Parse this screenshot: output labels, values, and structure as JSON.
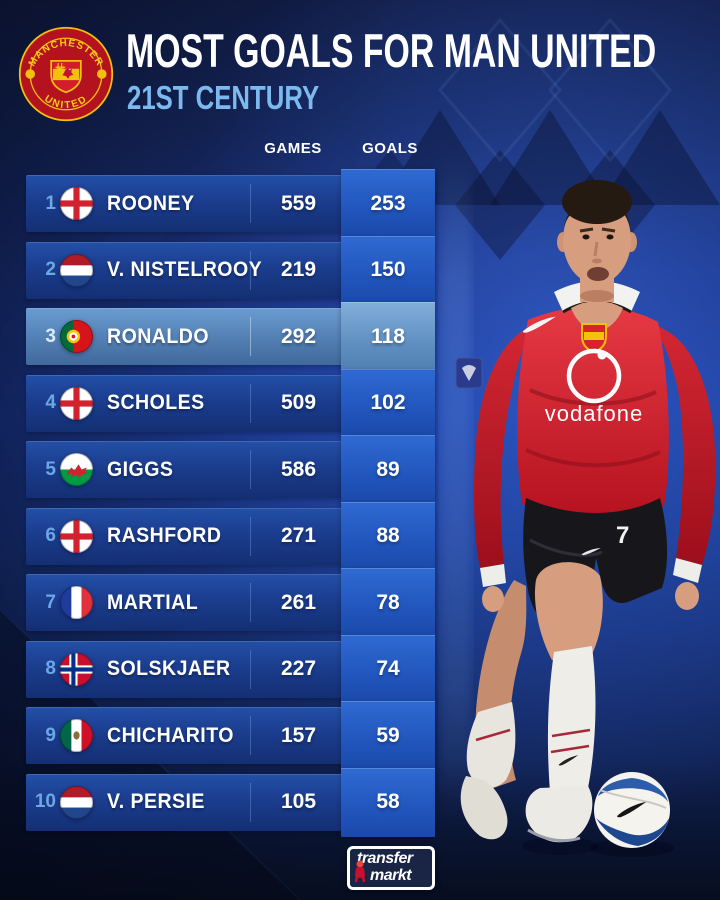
{
  "header": {
    "title": "MOST GOALS FOR MAN UNITED",
    "subtitle": "21ST CENTURY",
    "crest_top": "MANCHESTER",
    "crest_bottom": "UNITED"
  },
  "table": {
    "columns": [
      "GAMES",
      "GOALS"
    ],
    "rows": [
      {
        "rank": "1",
        "country": "england",
        "player": "ROONEY",
        "games": "559",
        "goals": "253",
        "highlight": false
      },
      {
        "rank": "2",
        "country": "netherlands",
        "player": "V. NISTELROOY",
        "games": "219",
        "goals": "150",
        "highlight": false
      },
      {
        "rank": "3",
        "country": "portugal",
        "player": "RONALDO",
        "games": "292",
        "goals": "118",
        "highlight": true
      },
      {
        "rank": "4",
        "country": "england",
        "player": "SCHOLES",
        "games": "509",
        "goals": "102",
        "highlight": false
      },
      {
        "rank": "5",
        "country": "wales",
        "player": "GIGGS",
        "games": "586",
        "goals": "89",
        "highlight": false
      },
      {
        "rank": "6",
        "country": "england",
        "player": "RASHFORD",
        "games": "271",
        "goals": "88",
        "highlight": false
      },
      {
        "rank": "7",
        "country": "france",
        "player": "MARTIAL",
        "games": "261",
        "goals": "78",
        "highlight": false
      },
      {
        "rank": "8",
        "country": "norway",
        "player": "SOLSKJAER",
        "games": "227",
        "goals": "74",
        "highlight": false
      },
      {
        "rank": "9",
        "country": "mexico",
        "player": "CHICHARITO",
        "games": "157",
        "goals": "59",
        "highlight": false
      },
      {
        "rank": "10",
        "country": "netherlands",
        "player": "V. PERSIE",
        "games": "105",
        "goals": "58",
        "highlight": false
      }
    ]
  },
  "photo": {
    "sponsor": "vodafone",
    "shirt_number": "7"
  },
  "footer": {
    "logo_line1": "transfer",
    "logo_line2": "markt"
  },
  "colors": {
    "accent_light_blue": "#7cb9ef",
    "row_blue": "#1b3d8e",
    "goals_box_blue": "#2257bf",
    "highlight_row_blue": "#527fb3",
    "jersey_red": "#d42331",
    "background_navy": "#14245c"
  }
}
